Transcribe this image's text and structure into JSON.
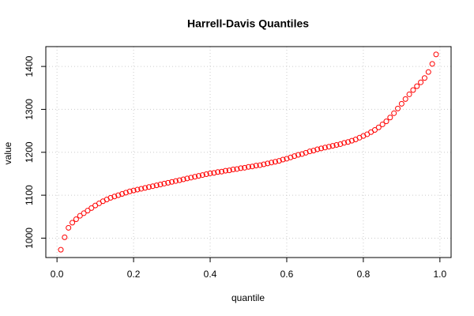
{
  "chart_data": {
    "type": "scatter",
    "title": "Harrell-Davis Quantiles",
    "x_label": "quantile",
    "y_label": "value",
    "x": [
      0.01,
      0.02,
      0.03,
      0.04,
      0.05,
      0.06,
      0.07,
      0.08,
      0.09,
      0.1,
      0.11,
      0.12,
      0.13,
      0.14,
      0.15,
      0.16,
      0.17,
      0.18,
      0.19,
      0.2,
      0.21,
      0.22,
      0.23,
      0.24,
      0.25,
      0.26,
      0.27,
      0.28,
      0.29,
      0.3,
      0.31,
      0.32,
      0.33,
      0.34,
      0.35,
      0.36,
      0.37,
      0.38,
      0.39,
      0.4,
      0.41,
      0.42,
      0.43,
      0.44,
      0.45,
      0.46,
      0.47,
      0.48,
      0.49,
      0.5,
      0.51,
      0.52,
      0.53,
      0.54,
      0.55,
      0.56,
      0.57,
      0.58,
      0.59,
      0.6,
      0.61,
      0.62,
      0.63,
      0.64,
      0.65,
      0.66,
      0.67,
      0.68,
      0.69,
      0.7,
      0.71,
      0.72,
      0.73,
      0.74,
      0.75,
      0.76,
      0.77,
      0.78,
      0.79,
      0.8,
      0.81,
      0.82,
      0.83,
      0.84,
      0.85,
      0.86,
      0.87,
      0.88,
      0.89,
      0.9,
      0.91,
      0.92,
      0.93,
      0.94,
      0.95,
      0.96,
      0.97,
      0.98,
      0.99
    ],
    "values": [
      973,
      1002,
      1024,
      1036,
      1044,
      1052,
      1058,
      1064,
      1070,
      1076,
      1081,
      1086,
      1090,
      1094,
      1097,
      1100,
      1103,
      1106,
      1109,
      1111,
      1113,
      1115,
      1117,
      1119,
      1121,
      1123,
      1125,
      1127,
      1129,
      1131,
      1133,
      1135,
      1137,
      1139,
      1141,
      1143,
      1145,
      1147,
      1149,
      1151,
      1152,
      1154,
      1155,
      1157,
      1158,
      1160,
      1161,
      1163,
      1164,
      1166,
      1167,
      1169,
      1170,
      1172,
      1174,
      1176,
      1178,
      1180,
      1183,
      1185,
      1188,
      1191,
      1194,
      1196,
      1199,
      1202,
      1204,
      1207,
      1209,
      1211,
      1213,
      1215,
      1217,
      1219,
      1222,
      1224,
      1227,
      1230,
      1234,
      1238,
      1242,
      1247,
      1252,
      1258,
      1265,
      1272,
      1281,
      1291,
      1302,
      1313,
      1324,
      1335,
      1345,
      1354,
      1363,
      1373,
      1387,
      1406,
      1428
    ],
    "color": "#ff0000",
    "xlim": [
      -0.0292,
      1.0292
    ],
    "ylim": [
      954.8,
      1446.2
    ],
    "xticks": [
      {
        "value": 0,
        "label": "0.0"
      },
      0.2,
      0.4,
      0.6,
      0.8,
      {
        "value": 1,
        "label": "1.0"
      }
    ],
    "yticks": [
      1000,
      1100,
      1200,
      1300,
      1400
    ],
    "grid": true
  }
}
